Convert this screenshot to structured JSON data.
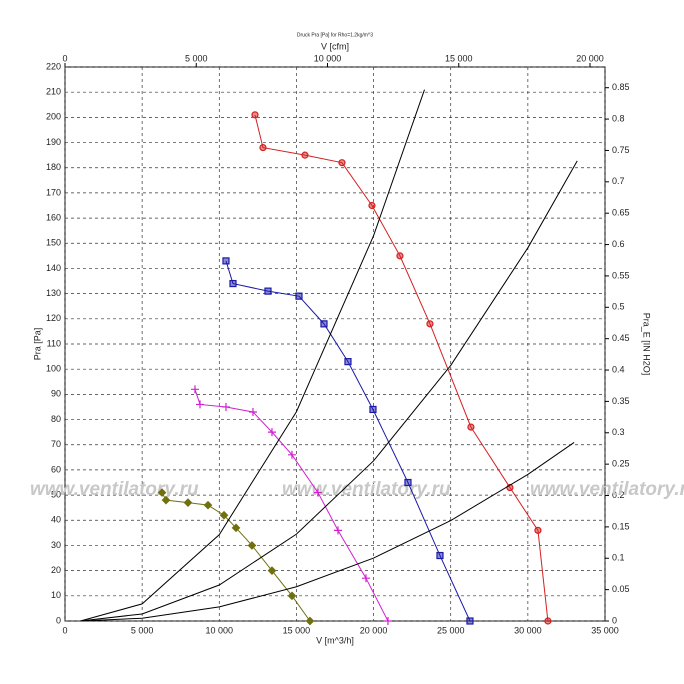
{
  "chart_data": {
    "type": "line",
    "title": "Druck Pra [Pa] for Rho=1.2kg/m^3",
    "x_label": "V [m^3/h]",
    "x2_label": "V [cfm]",
    "y_label": "Pra [Pa]",
    "y2_label": "Pra_E [IN H2O]",
    "watermark": "www.ventilatory.ru",
    "grid": true,
    "xlim": [
      0,
      35000
    ],
    "xticks": [
      0,
      {
        "value": 5000,
        "label": "5 000"
      },
      {
        "value": 10000,
        "label": "10 000"
      },
      {
        "value": 15000,
        "label": "15 000"
      },
      {
        "value": 20000,
        "label": "20 000"
      },
      {
        "value": 25000,
        "label": "25 000"
      },
      {
        "value": 30000,
        "label": "30 000"
      },
      {
        "value": 35000,
        "label": "35 000"
      }
    ],
    "x2lim": [
      0,
      20571
    ],
    "x2ticks": [
      0,
      {
        "value": 5000,
        "label": "5 000"
      },
      {
        "value": 10000,
        "label": "10 000"
      },
      {
        "value": 15000,
        "label": "15 000"
      },
      {
        "value": 20000,
        "label": "20 000"
      }
    ],
    "ylim": [
      0,
      220
    ],
    "yticks": [
      0,
      10,
      20,
      30,
      40,
      50,
      60,
      70,
      80,
      90,
      100,
      110,
      120,
      130,
      140,
      150,
      160,
      170,
      180,
      190,
      200,
      210,
      220
    ],
    "y2lim": [
      0,
      0.883
    ],
    "y2ticks": [
      0,
      0.05,
      0.1,
      0.15,
      0.2,
      0.25,
      0.3,
      0.35,
      0.4,
      0.45,
      0.5,
      0.55,
      0.6,
      0.65,
      0.7,
      0.75,
      0.8,
      0.85
    ],
    "series": [
      {
        "color": "#d42020",
        "marker": "circle",
        "x": [
          12314,
          12832,
          15554,
          17952,
          19896,
          21710,
          23654,
          26311,
          28838,
          30653,
          31300
        ],
        "values": [
          201,
          188,
          185,
          182,
          165,
          145,
          118,
          77,
          53,
          36,
          0
        ]
      },
      {
        "color": "#1a1aa8",
        "marker": "square",
        "x": [
          10434,
          10888,
          13156,
          15165,
          16786,
          18341,
          19961,
          22230,
          24304,
          26248
        ],
        "values": [
          143,
          134,
          131,
          129,
          118,
          103,
          84,
          55,
          26,
          0
        ]
      },
      {
        "color": "#d020d0",
        "marker": "plus",
        "x": [
          8425,
          8750,
          10434,
          12184,
          13415,
          14712,
          16397,
          17693,
          19508,
          20934
        ],
        "values": [
          92,
          86,
          85,
          83,
          75,
          66,
          51,
          36,
          17,
          0
        ]
      },
      {
        "color": "#707010",
        "marker": "diamond",
        "x": [
          6287,
          6546,
          7972,
          9268,
          10305,
          11083,
          12119,
          13415,
          14712,
          15878
        ],
        "values": [
          51,
          48,
          47,
          46,
          42,
          37,
          30,
          20,
          10,
          0
        ]
      },
      {
        "color": "#000000",
        "marker": "none",
        "x": [
          1000,
          5000,
          10000,
          15000,
          20000,
          23300
        ],
        "values": [
          0,
          6.8,
          34.3,
          83.1,
          153,
          211
        ]
      },
      {
        "color": "#000000",
        "marker": "none",
        "x": [
          1000,
          5000,
          10000,
          15000,
          20000,
          25000,
          30000,
          33200
        ],
        "values": [
          0,
          2.8,
          14.3,
          34.5,
          63.6,
          101.5,
          148.2,
          182.7
        ]
      },
      {
        "color": "#000000",
        "marker": "none",
        "x": [
          1000,
          5000,
          10000,
          15000,
          20000,
          25000,
          30000,
          33000
        ],
        "values": [
          0,
          1.1,
          5.6,
          13.6,
          25,
          39.9,
          58.2,
          70.9
        ]
      }
    ]
  }
}
